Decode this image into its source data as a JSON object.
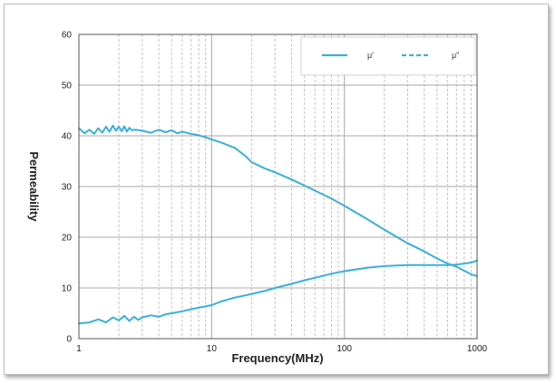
{
  "chart_data": {
    "type": "line",
    "title": "",
    "xlabel": "Frequency(MHz)",
    "ylabel": "Permeability",
    "xscale": "log",
    "xlim": [
      1,
      1000
    ],
    "ylim": [
      0,
      60
    ],
    "xticks": [
      1,
      10,
      100,
      1000
    ],
    "xtick_labels": [
      "1",
      "10",
      "100",
      "1000"
    ],
    "yticks": [
      0,
      10,
      20,
      30,
      40,
      50,
      60
    ],
    "ytick_labels": [
      "0",
      "10",
      "20",
      "30",
      "40",
      "50",
      "60"
    ],
    "grid": true,
    "legend_position": "top-right",
    "colors": {
      "series": "#3ab0d8",
      "grid_major": "#a8a8a8",
      "grid_minor": "#c4c4c4"
    },
    "series": [
      {
        "name": "μ'",
        "style": "solid",
        "x": [
          1,
          1.1,
          1.2,
          1.3,
          1.4,
          1.5,
          1.6,
          1.7,
          1.8,
          1.9,
          2.0,
          2.1,
          2.2,
          2.3,
          2.4,
          2.5,
          2.7,
          3,
          3.5,
          4,
          4.5,
          5,
          5.5,
          6,
          7,
          8,
          9,
          10,
          12,
          15,
          18,
          20,
          25,
          30,
          40,
          50,
          60,
          80,
          100,
          150,
          200,
          300,
          400,
          500,
          600,
          700,
          800,
          900,
          1000
        ],
        "values": [
          41.5,
          40.5,
          41.2,
          40.4,
          41.5,
          40.6,
          41.8,
          40.8,
          42,
          41,
          41.8,
          40.9,
          41.9,
          40.8,
          41.6,
          41.1,
          41.2,
          41,
          40.6,
          41.2,
          40.7,
          41.1,
          40.5,
          40.8,
          40.4,
          40.1,
          39.7,
          39.3,
          38.6,
          37.6,
          36,
          34.8,
          33.6,
          32.8,
          31.4,
          30.2,
          29.2,
          27.6,
          26.2,
          23.5,
          21.5,
          18.8,
          17.2,
          15.8,
          14.8,
          14.2,
          13.4,
          12.7,
          12.3
        ]
      },
      {
        "name": "μ\"",
        "style": "dashed",
        "x": [
          1,
          1.2,
          1.4,
          1.6,
          1.8,
          2.0,
          2.2,
          2.4,
          2.6,
          2.8,
          3,
          3.5,
          4,
          4.5,
          5,
          6,
          7,
          8,
          10,
          12,
          15,
          20,
          25,
          30,
          40,
          50,
          60,
          80,
          100,
          150,
          200,
          300,
          400,
          500,
          600,
          700,
          800,
          900,
          1000
        ],
        "values": [
          3,
          3.2,
          3.8,
          3.2,
          4.2,
          3.6,
          4.5,
          3.5,
          4.3,
          3.7,
          4.2,
          4.6,
          4.3,
          4.8,
          5,
          5.4,
          5.8,
          6.1,
          6.6,
          7.4,
          8.1,
          8.8,
          9.4,
          10,
          10.8,
          11.5,
          12,
          12.8,
          13.3,
          14,
          14.3,
          14.5,
          14.5,
          14.5,
          14.5,
          14.6,
          14.8,
          15,
          15.4
        ]
      }
    ]
  }
}
